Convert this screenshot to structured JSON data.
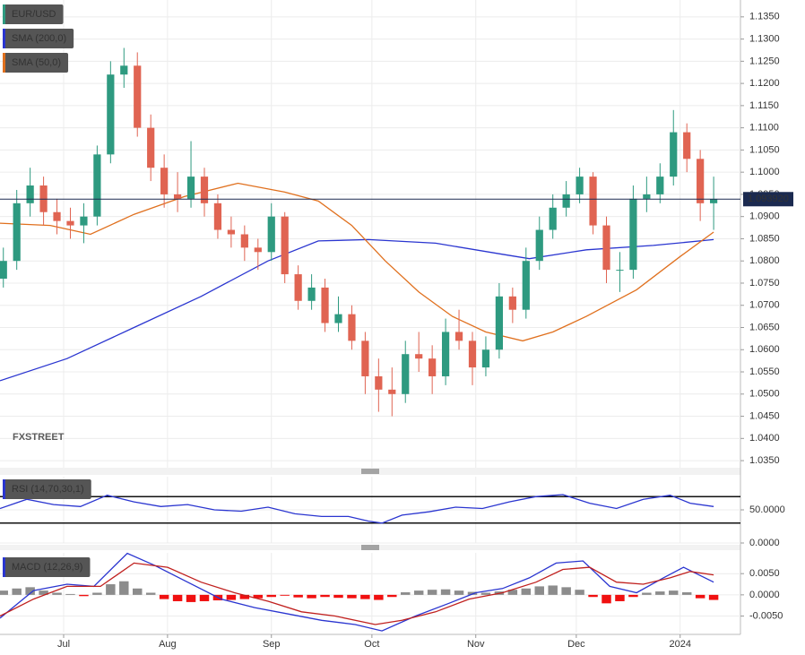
{
  "chart_data": [
    {
      "type": "candlestick",
      "name": "EUR/USD",
      "color": "#2e9a80",
      "up_color": "#2e9a80",
      "down_color": "#e06452",
      "x": [
        1,
        5,
        9,
        13,
        17,
        21,
        25,
        29,
        33,
        37,
        41,
        45,
        49,
        53,
        57,
        61,
        65,
        69,
        73,
        77,
        81,
        85,
        89,
        93,
        97,
        101,
        105,
        109,
        113,
        117,
        121,
        125,
        129,
        133,
        137,
        141,
        145,
        149,
        153,
        157,
        161,
        165,
        169,
        173,
        177,
        181,
        185,
        189,
        193,
        197,
        201,
        205,
        209,
        213
      ],
      "open": [
        1.076,
        1.08,
        1.093,
        1.097,
        1.091,
        1.089,
        1.088,
        1.09,
        1.104,
        1.122,
        1.124,
        1.11,
        1.101,
        1.095,
        1.094,
        1.099,
        1.093,
        1.087,
        1.086,
        1.083,
        1.082,
        1.09,
        1.077,
        1.071,
        1.074,
        1.066,
        1.068,
        1.062,
        1.054,
        1.051,
        1.05,
        1.059,
        1.058,
        1.054,
        1.064,
        1.062,
        1.056,
        1.06,
        1.072,
        1.069,
        1.08,
        1.087,
        1.092,
        1.095,
        1.099,
        1.088,
        1.078,
        1.078,
        1.094,
        1.095,
        1.099,
        1.109,
        1.103,
        1.093
      ],
      "high": [
        1.083,
        1.096,
        1.101,
        1.099,
        1.094,
        1.092,
        1.093,
        1.106,
        1.125,
        1.128,
        1.127,
        1.113,
        1.104,
        1.1,
        1.107,
        1.101,
        1.095,
        1.09,
        1.088,
        1.085,
        1.093,
        1.091,
        1.079,
        1.077,
        1.076,
        1.072,
        1.07,
        1.064,
        1.058,
        1.056,
        1.062,
        1.064,
        1.061,
        1.067,
        1.069,
        1.064,
        1.063,
        1.075,
        1.074,
        1.083,
        1.09,
        1.095,
        1.098,
        1.101,
        1.1,
        1.09,
        1.082,
        1.097,
        1.099,
        1.102,
        1.114,
        1.111,
        1.105,
        1.099
      ],
      "low": [
        1.074,
        1.078,
        1.09,
        1.088,
        1.086,
        1.085,
        1.084,
        1.088,
        1.102,
        1.119,
        1.108,
        1.098,
        1.092,
        1.091,
        1.092,
        1.09,
        1.085,
        1.083,
        1.08,
        1.078,
        1.08,
        1.075,
        1.069,
        1.069,
        1.064,
        1.064,
        1.06,
        1.05,
        1.046,
        1.045,
        1.048,
        1.055,
        1.05,
        1.052,
        1.06,
        1.052,
        1.054,
        1.058,
        1.066,
        1.067,
        1.078,
        1.085,
        1.09,
        1.093,
        1.086,
        1.075,
        1.073,
        1.076,
        1.091,
        1.093,
        1.097,
        1.1,
        1.089,
        1.087
      ],
      "close": [
        1.08,
        1.093,
        1.097,
        1.091,
        1.089,
        1.088,
        1.09,
        1.104,
        1.122,
        1.124,
        1.11,
        1.101,
        1.095,
        1.094,
        1.099,
        1.093,
        1.087,
        1.086,
        1.083,
        1.082,
        1.09,
        1.077,
        1.071,
        1.074,
        1.066,
        1.068,
        1.062,
        1.054,
        1.051,
        1.05,
        1.059,
        1.058,
        1.054,
        1.064,
        1.062,
        1.056,
        1.06,
        1.072,
        1.069,
        1.08,
        1.087,
        1.092,
        1.095,
        1.099,
        1.088,
        1.078,
        1.078,
        1.094,
        1.095,
        1.099,
        1.109,
        1.103,
        1.093,
        1.09392
      ],
      "last_label": "1.093920",
      "lines": [
        {
          "name": "SMA (200,0)",
          "color": "#2a35d0",
          "x": [
            0,
            20,
            40,
            60,
            80,
            95,
            110,
            130,
            150,
            158,
            175,
            195,
            213
          ],
          "values": [
            1.053,
            1.058,
            1.065,
            1.072,
            1.08,
            1.0845,
            1.0848,
            1.084,
            1.0815,
            1.0805,
            1.0825,
            1.0835,
            1.0848
          ]
        },
        {
          "name": "SMA (50,0)",
          "color": "#e0701e",
          "x": [
            0,
            15,
            27,
            40,
            55,
            71,
            85,
            95,
            105,
            115,
            125,
            135,
            145,
            156,
            165,
            175,
            190,
            203,
            213
          ],
          "values": [
            1.0885,
            1.088,
            1.086,
            1.0905,
            1.0945,
            1.0975,
            1.0955,
            1.0935,
            1.088,
            1.08,
            1.073,
            1.0675,
            1.064,
            1.062,
            1.064,
            1.0675,
            1.0735,
            1.081,
            1.0865
          ]
        }
      ],
      "watermark": "FXSTREET",
      "xlim": [
        0,
        221
      ],
      "ylim": [
        1.0334,
        1.1388
      ],
      "yticks": [
        {
          "value": 1.035,
          "label": "1.0350"
        },
        {
          "value": 1.04,
          "label": "1.0400"
        },
        {
          "value": 1.045,
          "label": "1.0450"
        },
        {
          "value": 1.05,
          "label": "1.0500"
        },
        {
          "value": 1.055,
          "label": "1.0550"
        },
        {
          "value": 1.06,
          "label": "1.0600"
        },
        {
          "value": 1.065,
          "label": "1.0650"
        },
        {
          "value": 1.07,
          "label": "1.0700"
        },
        {
          "value": 1.075,
          "label": "1.0750"
        },
        {
          "value": 1.08,
          "label": "1.0800"
        },
        {
          "value": 1.085,
          "label": "1.0850"
        },
        {
          "value": 1.09,
          "label": "1.0900"
        },
        {
          "value": 1.095,
          "label": "1.0950"
        },
        {
          "value": 1.1,
          "label": "1.1000"
        },
        {
          "value": 1.105,
          "label": "1.1050"
        },
        {
          "value": 1.11,
          "label": "1.1100"
        },
        {
          "value": 1.115,
          "label": "1.1150"
        },
        {
          "value": 1.12,
          "label": "1.1200"
        },
        {
          "value": 1.125,
          "label": "1.1250"
        },
        {
          "value": 1.13,
          "label": "1.1300"
        },
        {
          "value": 1.135,
          "label": "1.1350"
        }
      ]
    },
    {
      "type": "line",
      "name": "RSI (14,70,30,1)",
      "color": "#2a35d0",
      "x": [
        0,
        8,
        16,
        24,
        32,
        40,
        48,
        56,
        64,
        72,
        80,
        88,
        96,
        104,
        110,
        114,
        120,
        128,
        136,
        144,
        152,
        160,
        168,
        176,
        184,
        192,
        200,
        206,
        213
      ],
      "values": [
        52,
        66,
        58,
        55,
        72,
        62,
        55,
        58,
        50,
        48,
        54,
        44,
        40,
        40,
        33,
        30,
        42,
        47,
        54,
        52,
        62,
        70,
        73,
        60,
        52,
        66,
        72,
        60,
        55
      ],
      "levels": [
        70,
        30
      ],
      "xlim": [
        0,
        221
      ],
      "ylim": [
        0,
        100
      ],
      "yticks": [
        {
          "value": 50,
          "label": "50.0000"
        },
        {
          "value": 0,
          "label": "0.0000"
        }
      ]
    },
    {
      "type": "macd",
      "name": "MACD (12,26,9)",
      "lines": [
        {
          "color": "#2a35d0",
          "x": [
            0,
            10,
            20,
            28,
            38,
            46,
            56,
            66,
            76,
            86,
            96,
            106,
            114,
            124,
            134,
            142,
            150,
            158,
            166,
            174,
            182,
            190,
            198,
            204,
            213
          ],
          "values": [
            -0.0055,
            0.001,
            0.0025,
            0.002,
            0.0098,
            0.007,
            0.003,
            -0.001,
            -0.003,
            -0.0045,
            -0.006,
            -0.007,
            -0.0085,
            -0.005,
            -0.002,
            0.0005,
            0.0015,
            0.004,
            0.0075,
            0.008,
            0.002,
            0.0005,
            0.004,
            0.0065,
            0.003
          ]
        },
        {
          "color": "#c0201e",
          "x": [
            0,
            10,
            20,
            30,
            40,
            50,
            60,
            70,
            80,
            90,
            100,
            112,
            120,
            130,
            140,
            150,
            160,
            168,
            176,
            184,
            192,
            200,
            206,
            213
          ],
          "values": [
            -0.005,
            -0.001,
            0.002,
            0.002,
            0.0075,
            0.0065,
            0.003,
            0.0005,
            -0.0015,
            -0.004,
            -0.005,
            -0.007,
            -0.006,
            -0.004,
            -0.001,
            0.0005,
            0.003,
            0.006,
            0.0065,
            0.003,
            0.0025,
            0.004,
            0.0055,
            0.0047
          ]
        }
      ],
      "histogram": {
        "up_color": "#8c8c8c",
        "down_color": "#f01010",
        "x": [
          1,
          5,
          9,
          13,
          17,
          21,
          25,
          29,
          33,
          37,
          41,
          45,
          49,
          53,
          57,
          61,
          65,
          69,
          73,
          77,
          81,
          85,
          89,
          93,
          97,
          101,
          105,
          109,
          113,
          117,
          121,
          125,
          129,
          133,
          137,
          141,
          145,
          149,
          153,
          157,
          161,
          165,
          169,
          173,
          177,
          181,
          185,
          189,
          193,
          197,
          201,
          205,
          209,
          213
        ],
        "values": [
          0.001,
          0.0015,
          0.0018,
          0.001,
          0.0005,
          0.0002,
          -0.0003,
          0.0005,
          0.0025,
          0.0032,
          0.0015,
          0.0005,
          -0.001,
          -0.0015,
          -0.0017,
          -0.0015,
          -0.0013,
          -0.0012,
          -0.001,
          -0.0008,
          -0.0005,
          -0.0002,
          -0.0006,
          -0.0008,
          -0.0005,
          -0.0007,
          -0.0008,
          -0.001,
          -0.0012,
          -0.0005,
          0.0006,
          0.001,
          0.0012,
          0.0013,
          0.001,
          0.0007,
          0.0005,
          0.0008,
          0.0012,
          0.0015,
          0.002,
          0.0022,
          0.0018,
          0.0012,
          -0.0005,
          -0.002,
          -0.0015,
          -0.0005,
          0.0005,
          0.0008,
          0.001,
          0.0006,
          -0.0008,
          -0.0012
        ]
      },
      "xlim": [
        0,
        221
      ],
      "ylim": [
        -0.0089,
        0.0099
      ],
      "yticks": [
        {
          "value": 0.005,
          "label": "0.0050"
        },
        {
          "value": 0,
          "label": "0.0000"
        },
        {
          "value": -0.005,
          "label": "-0.0050"
        }
      ],
      "xticks": [
        {
          "value": 19,
          "label": "Jul"
        },
        {
          "value": 50,
          "label": "Aug"
        },
        {
          "value": 81,
          "label": "Sep"
        },
        {
          "value": 111,
          "label": "Oct"
        },
        {
          "value": 142,
          "label": "Nov"
        },
        {
          "value": 172,
          "label": "Dec"
        },
        {
          "value": 203,
          "label": "2024"
        }
      ]
    }
  ]
}
